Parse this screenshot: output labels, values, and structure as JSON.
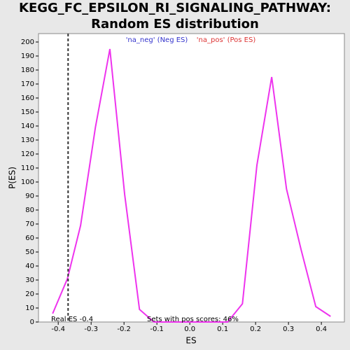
{
  "chart_data": {
    "type": "line",
    "title": "KEGG_FC_EPSILON_RI_SIGNALING_PATHWAY: Random ES distribution",
    "xlabel": "ES",
    "ylabel": "P(ES)",
    "legend": [
      {
        "label": "'na_neg' (Neg ES)",
        "color": "#3333cc"
      },
      {
        "label": "'na_pos' (Pos ES)",
        "color": "#dd3333"
      }
    ],
    "annotations": [
      "Real ES -0.4",
      "Sets with pos scores: 46%"
    ],
    "real_es_line": -0.37,
    "series": [
      {
        "color": "#ee33ee",
        "x": [
          -0.417,
          -0.372,
          -0.332,
          -0.287,
          -0.243,
          -0.198,
          -0.153,
          -0.109,
          -0.064,
          -0.02,
          0.025,
          0.07,
          0.115,
          0.16,
          0.204,
          0.249,
          0.294,
          0.338,
          0.383,
          0.428
        ],
        "values": [
          6,
          31,
          69,
          139,
          195,
          91,
          9,
          0,
          0,
          0,
          0,
          0,
          0,
          13,
          112,
          175,
          95,
          52,
          11,
          4
        ]
      }
    ],
    "xlim": [
      -0.46,
      0.47
    ],
    "xticks": [
      -0.4,
      -0.3,
      -0.2,
      -0.1,
      {
        "value": 0,
        "label": "0.0"
      },
      0.1,
      0.2,
      0.3,
      0.4
    ],
    "ylim": [
      0,
      206
    ],
    "yticks": [
      0,
      10,
      20,
      30,
      40,
      50,
      60,
      70,
      80,
      90,
      100,
      110,
      120,
      130,
      140,
      150,
      160,
      170,
      180,
      190,
      200
    ]
  }
}
